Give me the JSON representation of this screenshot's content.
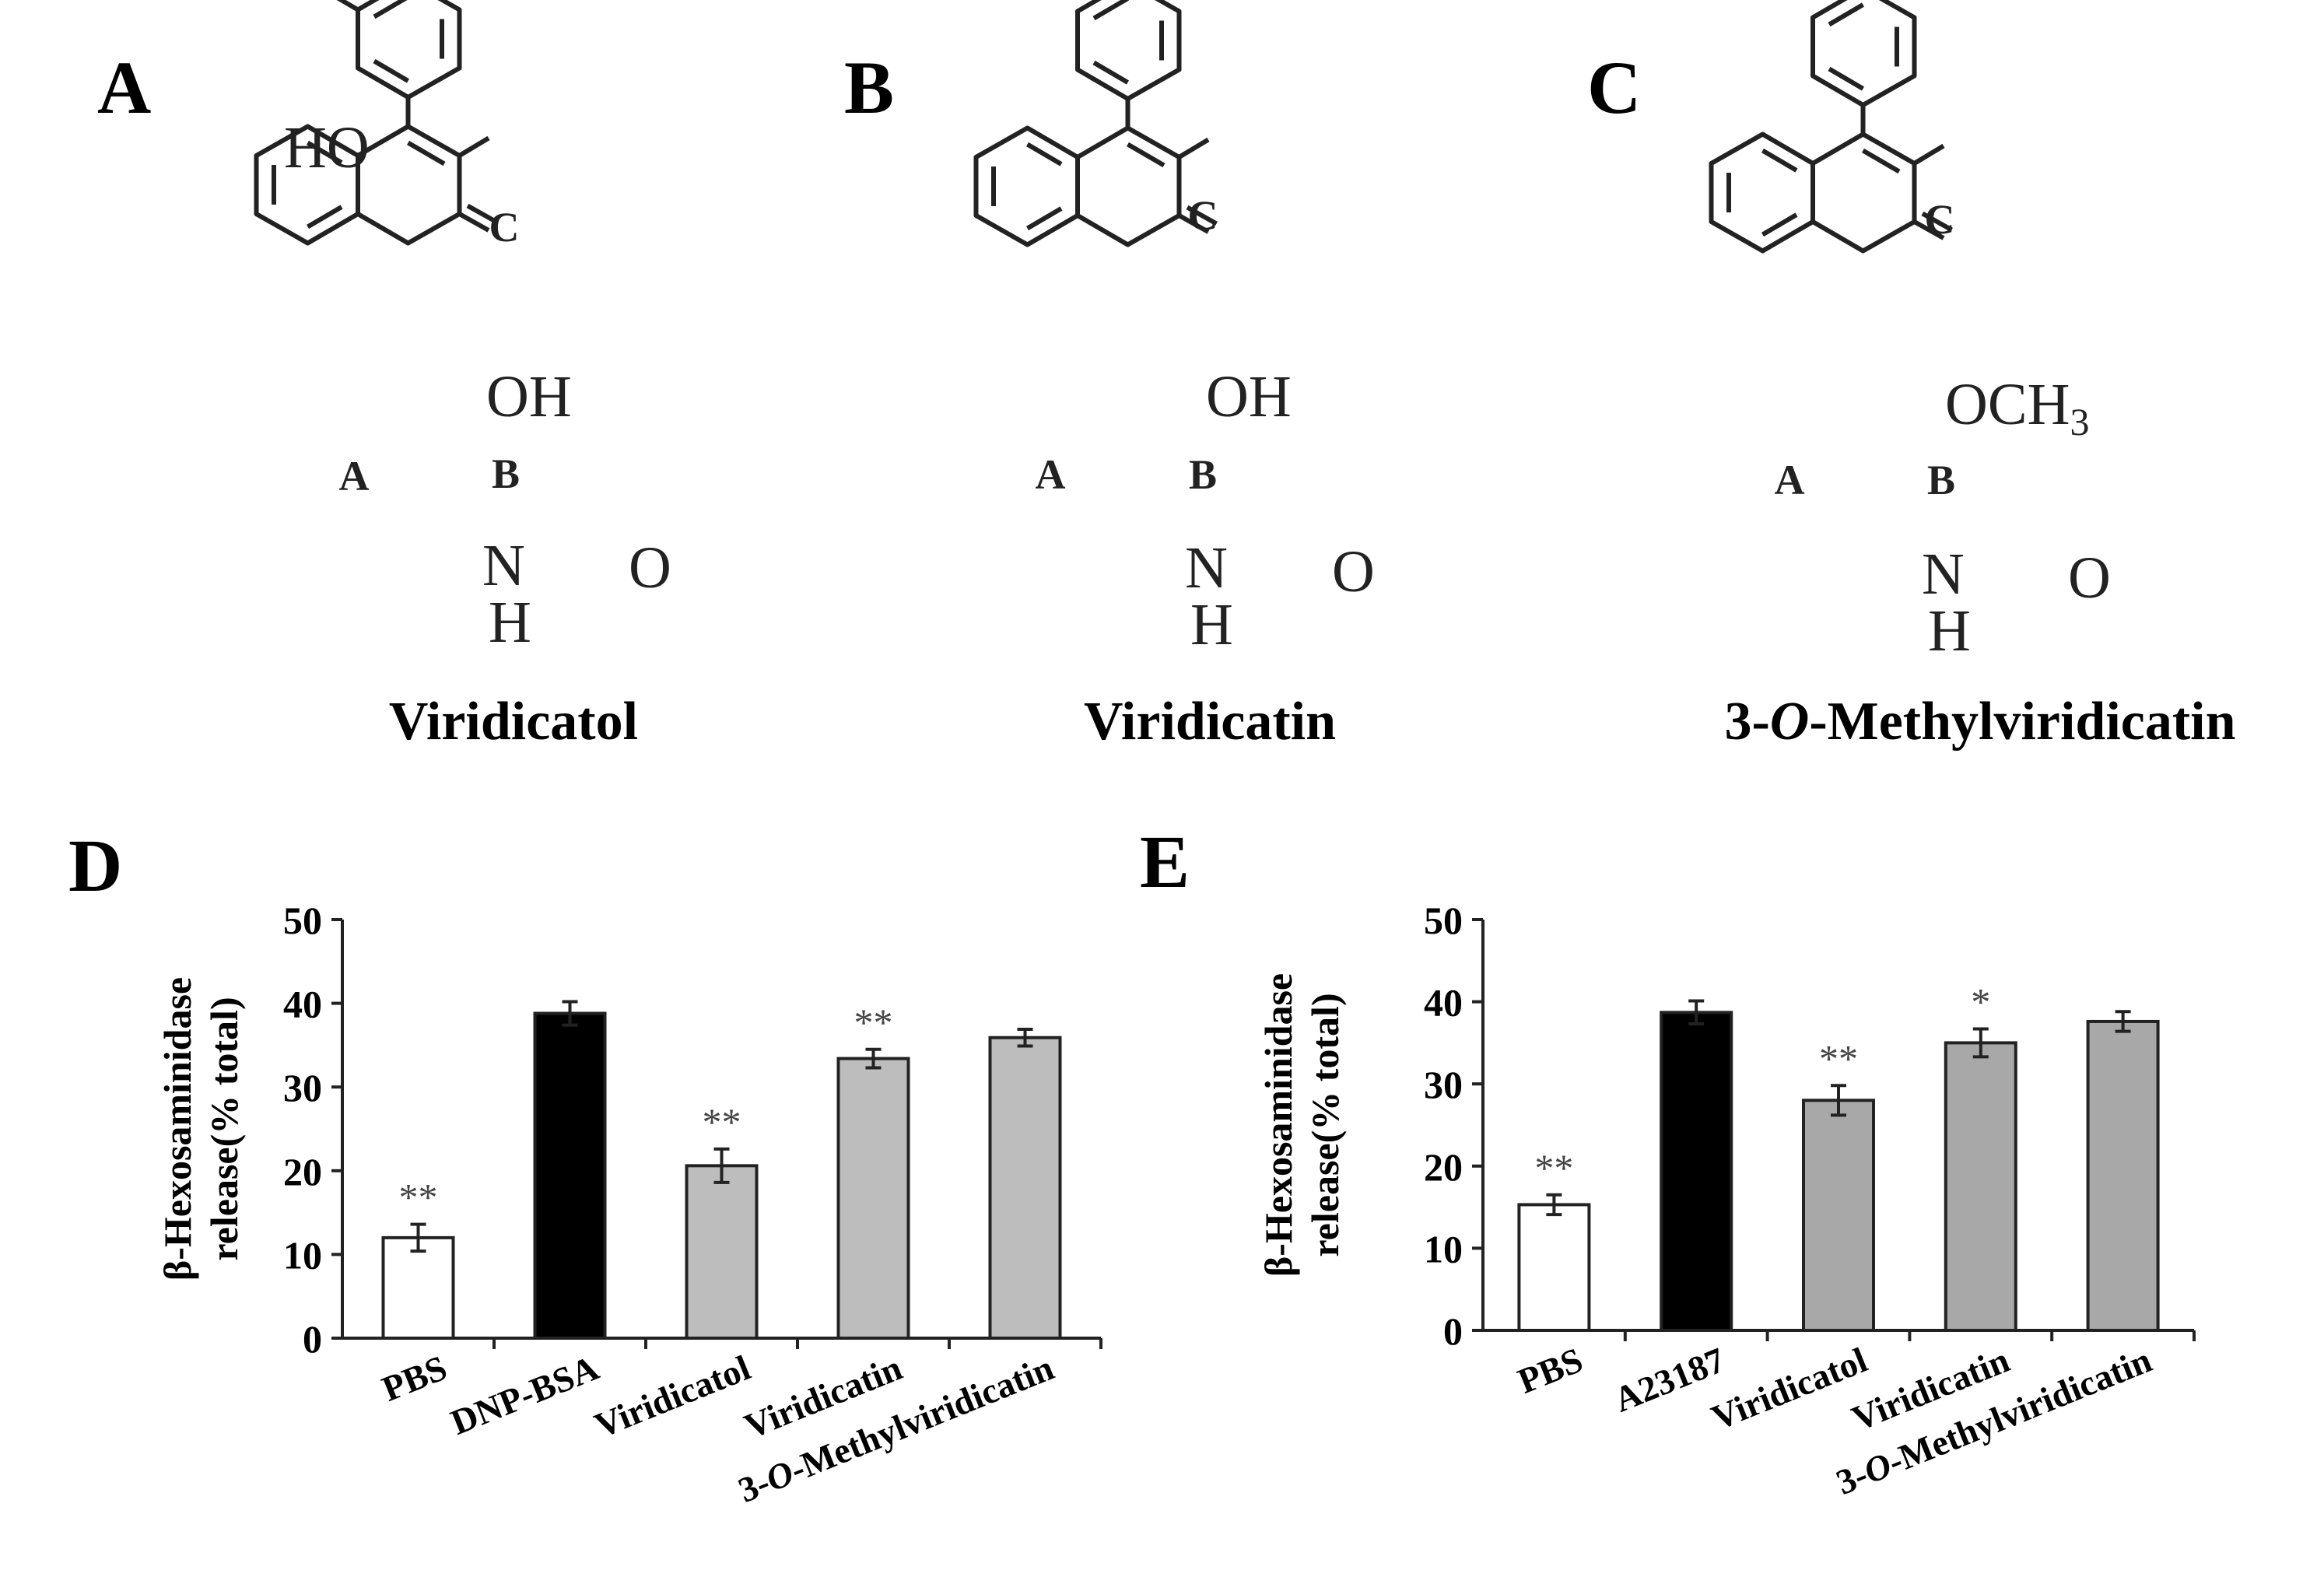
{
  "panels": {
    "A": {
      "letter": "A",
      "compound_name": "Viridicatol",
      "substituent": "OH",
      "c_ring_substituent": "HO",
      "ring_labels": [
        "A",
        "B",
        "C"
      ],
      "atoms": {
        "carbonyl_o": "O",
        "n": "N",
        "nh": "H"
      }
    },
    "B": {
      "letter": "B",
      "compound_name": "Viridicatin",
      "substituent": "OH",
      "ring_labels": [
        "A",
        "B",
        "C"
      ],
      "atoms": {
        "carbonyl_o": "O",
        "n": "N",
        "nh": "H"
      }
    },
    "C": {
      "letter": "C",
      "compound_name": "3-O-Methylviridicatin",
      "substituent": "OCH",
      "substituent_subscript": "3",
      "ring_labels": [
        "A",
        "B",
        "C"
      ],
      "atoms": {
        "carbonyl_o": "O",
        "n": "N",
        "nh": "H"
      }
    },
    "D": {
      "letter": "D"
    },
    "E": {
      "letter": "E"
    }
  },
  "chart_data": [
    {
      "panel": "D",
      "type": "bar",
      "ylabel_line1": "β-Hexosaminidase",
      "ylabel_line2": "release(% total)",
      "ylim": [
        0,
        50
      ],
      "yticks": [
        0,
        10,
        20,
        30,
        40,
        50
      ],
      "categories": [
        "PBS",
        "DNP-BSA",
        "Viridicatol",
        "Viridicatin",
        "3-O-Methylviridicatin"
      ],
      "values": [
        12,
        38.8,
        20.6,
        33.4,
        35.9
      ],
      "errors": [
        1.6,
        1.4,
        2.0,
        1.1,
        1.0
      ],
      "significance": [
        "**",
        "",
        "**",
        "**",
        ""
      ],
      "bar_fills": [
        "#ffffff",
        "#000000",
        "#bdbdbd",
        "#bdbdbd",
        "#bdbdbd"
      ]
    },
    {
      "panel": "E",
      "type": "bar",
      "ylabel_line1": "β-Hexosaminidase",
      "ylabel_line2": "release(% total)",
      "ylim": [
        0,
        50
      ],
      "yticks": [
        0,
        10,
        20,
        30,
        40,
        50
      ],
      "categories": [
        "PBS",
        "A23187",
        "Viridicatol",
        "Viridicatin",
        "3-O-Methylviridicatin"
      ],
      "values": [
        15.3,
        38.7,
        28,
        35,
        37.6
      ],
      "errors": [
        1.2,
        1.4,
        1.8,
        1.7,
        1.2
      ],
      "significance": [
        "**",
        "",
        "**",
        "*",
        ""
      ],
      "bar_fills": [
        "#ffffff",
        "#000000",
        "#a8a8a8",
        "#a8a8a8",
        "#a8a8a8"
      ]
    }
  ]
}
